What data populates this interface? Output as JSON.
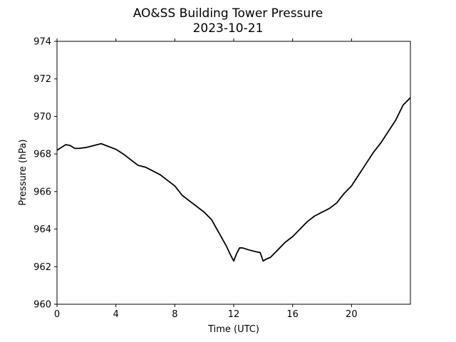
{
  "chart_data": {
    "type": "line",
    "title": "AO&SS Building Tower Pressure",
    "subtitle": "2023-10-21",
    "xlabel": "Time (UTC)",
    "ylabel": "Pressure (hPa)",
    "xlim": [
      0,
      24
    ],
    "ylim": [
      960,
      974
    ],
    "xticks": [
      0,
      4,
      8,
      12,
      16,
      20
    ],
    "yticks": [
      960,
      962,
      964,
      966,
      968,
      970,
      972,
      974
    ],
    "grid": false,
    "line_color": "#000000",
    "series": [
      {
        "x": [
          0,
          0.3,
          0.6,
          0.9,
          1.2,
          1.5,
          2.0,
          2.5,
          3.0,
          3.5,
          4.0,
          4.5,
          5.0,
          5.5,
          6.0,
          6.5,
          7.0,
          7.5,
          8.0,
          8.5,
          9.0,
          9.5,
          10.0,
          10.5,
          11.0,
          11.5,
          11.8,
          12.0,
          12.2,
          12.4,
          12.6,
          13.0,
          13.5,
          13.8,
          14.0,
          14.2,
          14.5,
          15.0,
          15.5,
          16.0,
          16.5,
          17.0,
          17.5,
          18.0,
          18.5,
          19.0,
          19.5,
          20.0,
          20.5,
          21.0,
          21.5,
          22.0,
          22.5,
          23.0,
          23.5,
          24.0
        ],
        "y": [
          968.2,
          968.35,
          968.5,
          968.45,
          968.3,
          968.3,
          968.35,
          968.45,
          968.55,
          968.4,
          968.25,
          968.0,
          967.7,
          967.4,
          967.3,
          967.1,
          966.9,
          966.6,
          966.3,
          965.8,
          965.5,
          965.2,
          964.9,
          964.5,
          963.8,
          963.1,
          962.6,
          962.3,
          962.7,
          963.0,
          963.0,
          962.9,
          962.8,
          962.75,
          962.3,
          962.4,
          962.5,
          962.9,
          963.3,
          963.6,
          964.0,
          964.4,
          964.7,
          964.9,
          965.1,
          965.4,
          965.9,
          966.3,
          966.9,
          967.5,
          968.1,
          968.6,
          969.2,
          969.8,
          970.6,
          971.0
        ]
      }
    ]
  }
}
